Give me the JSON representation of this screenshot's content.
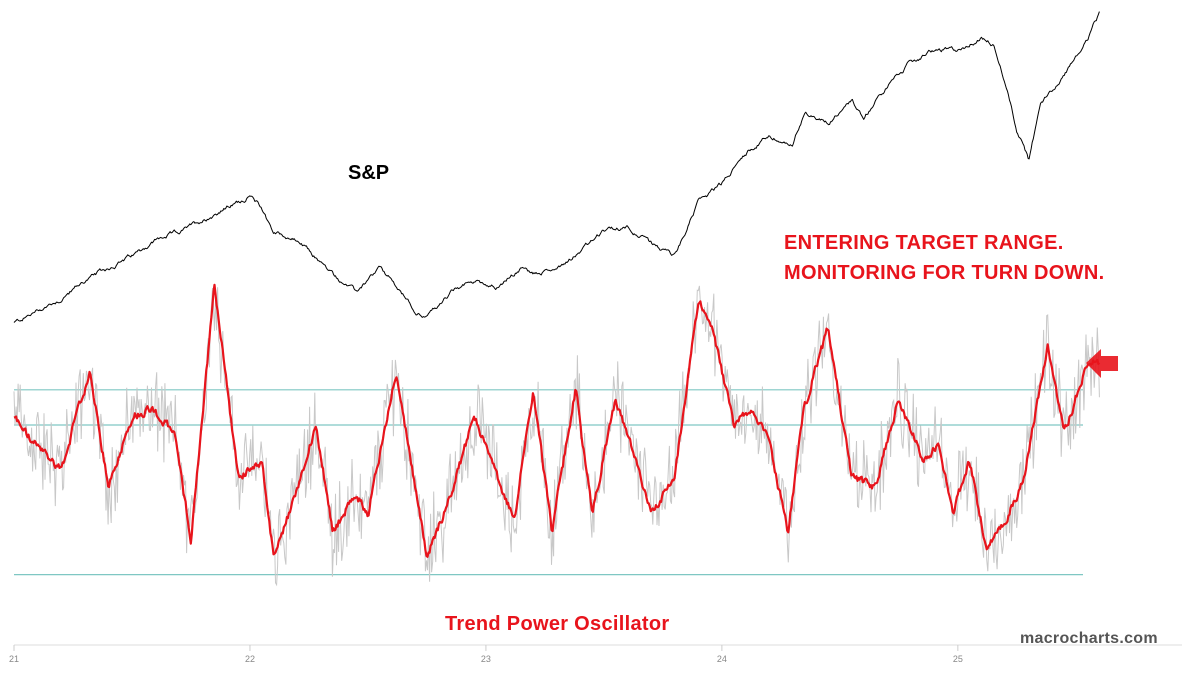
{
  "chart_data": {
    "type": "line",
    "title": "",
    "x_tick_labels": [
      "21",
      "22",
      "23",
      "24",
      "25"
    ],
    "x_range": [
      2021,
      2025.95
    ],
    "series": [
      {
        "name": "S&P",
        "panel": "price",
        "color": "#000000",
        "x": [
          2021.0,
          2021.1,
          2021.2,
          2021.3,
          2021.4,
          2021.5,
          2021.6,
          2021.7,
          2021.8,
          2021.9,
          2022.0,
          2022.05,
          2022.1,
          2022.2,
          2022.3,
          2022.35,
          2022.45,
          2022.55,
          2022.6,
          2022.7,
          2022.75,
          2022.85,
          2022.95,
          2023.05,
          2023.15,
          2023.2,
          2023.3,
          2023.4,
          2023.5,
          2023.6,
          2023.7,
          2023.8,
          2023.9,
          2024.0,
          2024.1,
          2024.2,
          2024.3,
          2024.35,
          2024.45,
          2024.55,
          2024.6,
          2024.7,
          2024.8,
          2024.9,
          2025.0,
          2025.1,
          2025.15,
          2025.2,
          2025.25,
          2025.3,
          2025.35,
          2025.45,
          2025.55,
          2025.6
        ],
        "values": [
          3700,
          3800,
          3900,
          4050,
          4150,
          4250,
          4380,
          4450,
          4550,
          4650,
          4750,
          4650,
          4450,
          4380,
          4200,
          4100,
          3950,
          4150,
          4050,
          3800,
          3750,
          3950,
          4050,
          4000,
          4150,
          4100,
          4150,
          4300,
          4450,
          4500,
          4350,
          4250,
          4700,
          4850,
          5100,
          5250,
          5150,
          5450,
          5350,
          5550,
          5400,
          5650,
          5850,
          5950,
          5950,
          6050,
          6000,
          5700,
          5300,
          5050,
          5500,
          5750,
          6050,
          6250
        ]
      },
      {
        "name": "Trend Power Oscillator",
        "panel": "oscillator",
        "color": "#e8141c",
        "x": [
          2021.0,
          2021.08,
          2021.2,
          2021.32,
          2021.4,
          2021.5,
          2021.58,
          2021.68,
          2021.75,
          2021.85,
          2021.95,
          2022.05,
          2022.1,
          2022.18,
          2022.28,
          2022.35,
          2022.45,
          2022.5,
          2022.62,
          2022.75,
          2022.85,
          2022.95,
          2023.05,
          2023.12,
          2023.2,
          2023.28,
          2023.38,
          2023.45,
          2023.55,
          2023.62,
          2023.7,
          2023.8,
          2023.9,
          2023.95,
          2024.05,
          2024.12,
          2024.2,
          2024.28,
          2024.35,
          2024.45,
          2024.55,
          2024.65,
          2024.75,
          2024.85,
          2024.92,
          2024.98,
          2025.05,
          2025.12,
          2025.2,
          2025.28,
          2025.38,
          2025.45,
          2025.55,
          2025.6
        ],
        "values": [
          0.1,
          -0.2,
          -0.5,
          0.6,
          -0.7,
          0.1,
          0.2,
          -0.1,
          -1.3,
          1.6,
          -0.6,
          -0.4,
          -1.5,
          -0.9,
          0.0,
          -1.2,
          -0.8,
          -1.0,
          0.6,
          -1.5,
          -0.8,
          0.1,
          -0.6,
          -1.1,
          0.4,
          -1.2,
          0.4,
          -1.0,
          0.3,
          -0.3,
          -1.0,
          -0.6,
          1.4,
          1.2,
          0.0,
          0.2,
          -0.2,
          -1.2,
          0.2,
          1.1,
          -0.6,
          -0.7,
          0.3,
          -0.4,
          -0.2,
          -1.0,
          -0.4,
          -1.4,
          -1.1,
          -0.6,
          0.9,
          -0.1,
          0.7,
          0.7
        ]
      }
    ],
    "oscillator_target_lines": [
      0.4,
      0.0,
      -1.7
    ],
    "colors": {
      "price": "#000000",
      "oscillator": "#e8141c",
      "raw_oscillator": "#c8c8c8",
      "target_lines": "#7fc7c3",
      "arrow": "#e8141c"
    }
  },
  "labels": {
    "sp": "S&P",
    "annotation_line1": "ENTERING TARGET RANGE.",
    "annotation_line2": "MONITORING FOR TURN DOWN.",
    "oscillator_title": "Trend Power Oscillator",
    "watermark": "macrocharts.com"
  },
  "icons": {
    "arrow": "left-arrow-icon"
  }
}
